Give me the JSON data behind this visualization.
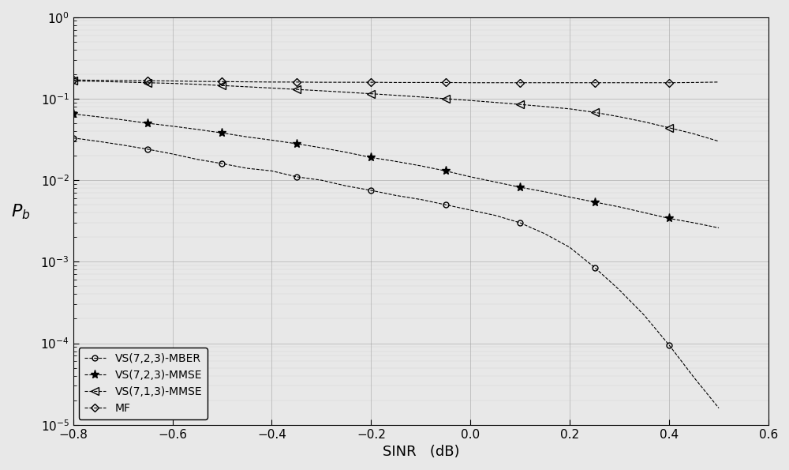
{
  "title": "",
  "xlabel": "SINR   (dB)",
  "ylabel": "$P_b$",
  "xlim": [
    -0.8,
    0.6
  ],
  "series": {
    "VS723_MBER": {
      "label": "VS(7,2,3)-MBER",
      "marker": "o",
      "linestyle": "--",
      "color": "#000000",
      "markersize": 5,
      "x": [
        -0.8,
        -0.75,
        -0.7,
        -0.65,
        -0.6,
        -0.55,
        -0.5,
        -0.45,
        -0.4,
        -0.35,
        -0.3,
        -0.25,
        -0.2,
        -0.15,
        -0.1,
        -0.05,
        0.0,
        0.05,
        0.1,
        0.15,
        0.2,
        0.25,
        0.3,
        0.35,
        0.4,
        0.45,
        0.5
      ],
      "y": [
        0.033,
        0.03,
        0.027,
        0.024,
        0.021,
        0.018,
        0.016,
        0.014,
        0.013,
        0.011,
        0.01,
        0.0085,
        0.0075,
        0.0065,
        0.0058,
        0.005,
        0.0043,
        0.0037,
        0.003,
        0.0022,
        0.0015,
        0.00085,
        0.00045,
        0.00022,
        9.5e-05,
        3.8e-05,
        1.6e-05
      ]
    },
    "VS723_MMSE": {
      "label": "VS(7,2,3)-MMSE",
      "marker": "*",
      "linestyle": "--",
      "color": "#000000",
      "markersize": 8,
      "x": [
        -0.8,
        -0.75,
        -0.7,
        -0.65,
        -0.6,
        -0.55,
        -0.5,
        -0.45,
        -0.4,
        -0.35,
        -0.3,
        -0.25,
        -0.2,
        -0.15,
        -0.1,
        -0.05,
        0.0,
        0.05,
        0.1,
        0.15,
        0.2,
        0.25,
        0.3,
        0.35,
        0.4,
        0.45,
        0.5
      ],
      "y": [
        0.065,
        0.06,
        0.055,
        0.05,
        0.046,
        0.042,
        0.038,
        0.034,
        0.031,
        0.028,
        0.025,
        0.022,
        0.019,
        0.017,
        0.015,
        0.013,
        0.011,
        0.0095,
        0.0082,
        0.0072,
        0.0062,
        0.0054,
        0.0047,
        0.004,
        0.0034,
        0.003,
        0.0026
      ]
    },
    "VS713_MMSE": {
      "label": "VS(7,1,3)-MMSE",
      "marker": "<",
      "linestyle": "--",
      "color": "#000000",
      "markersize": 7,
      "x": [
        -0.8,
        -0.75,
        -0.7,
        -0.65,
        -0.6,
        -0.55,
        -0.5,
        -0.45,
        -0.4,
        -0.35,
        -0.3,
        -0.25,
        -0.2,
        -0.15,
        -0.1,
        -0.05,
        0.0,
        0.05,
        0.1,
        0.15,
        0.2,
        0.25,
        0.3,
        0.35,
        0.4,
        0.45,
        0.5
      ],
      "y": [
        0.165,
        0.163,
        0.16,
        0.157,
        0.154,
        0.15,
        0.145,
        0.14,
        0.135,
        0.13,
        0.125,
        0.12,
        0.115,
        0.11,
        0.105,
        0.1,
        0.095,
        0.09,
        0.085,
        0.08,
        0.075,
        0.068,
        0.06,
        0.052,
        0.044,
        0.037,
        0.03
      ]
    },
    "MF": {
      "label": "MF",
      "marker": "D",
      "linestyle": "--",
      "color": "#000000",
      "markersize": 5,
      "x": [
        -0.8,
        -0.75,
        -0.7,
        -0.65,
        -0.6,
        -0.55,
        -0.5,
        -0.45,
        -0.4,
        -0.35,
        -0.3,
        -0.25,
        -0.2,
        -0.15,
        -0.1,
        -0.05,
        0.0,
        0.05,
        0.1,
        0.15,
        0.2,
        0.25,
        0.3,
        0.35,
        0.4,
        0.45,
        0.5
      ],
      "y": [
        0.17,
        0.168,
        0.167,
        0.166,
        0.165,
        0.163,
        0.162,
        0.161,
        0.16,
        0.16,
        0.159,
        0.159,
        0.159,
        0.158,
        0.158,
        0.158,
        0.157,
        0.157,
        0.157,
        0.157,
        0.157,
        0.157,
        0.157,
        0.157,
        0.157,
        0.158,
        0.16
      ]
    }
  },
  "background_color": "#e8e8e8",
  "legend_loc": "lower left",
  "legend_fontsize": 10,
  "tick_fontsize": 11,
  "label_fontsize": 13
}
